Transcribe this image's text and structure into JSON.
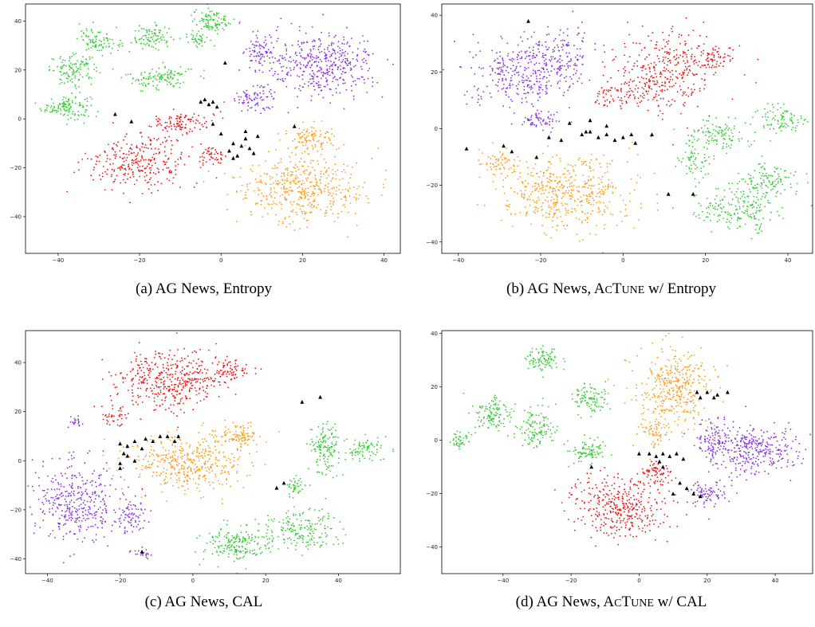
{
  "colors": {
    "purple": "#8a2be2",
    "red": "#ee1111",
    "orange": "#ff9a12",
    "green": "#33cc33",
    "black": "#000000"
  },
  "panels": [
    {
      "caption_prefix": "(a)  AG News, ",
      "caption_method": "Entropy",
      "caption_sc": false
    },
    {
      "caption_prefix": "(b)  AG News, ",
      "caption_method": "Entropy",
      "caption_sc": true
    },
    {
      "caption_prefix": "(c)  AG News, ",
      "caption_method": "CAL",
      "caption_sc": false
    },
    {
      "caption_prefix": "(d)  AG News, ",
      "caption_method": "CAL",
      "caption_sc": true
    }
  ],
  "sc_text": {
    "A": "A",
    "CT": "CT",
    "UNE": "UNE",
    "wslash": " w/ "
  },
  "chart_data": [
    {
      "type": "scatter",
      "title": "",
      "xlabel": "",
      "ylabel": "",
      "xlim": [
        -48,
        44
      ],
      "ylim": [
        -55,
        47
      ],
      "xticks": [
        "−40",
        "−20",
        "0",
        "20",
        "40"
      ],
      "xtick_values": [
        -40,
        -20,
        0,
        20,
        40
      ],
      "yticks": [
        "40",
        "20",
        "0",
        "−20",
        "−40"
      ],
      "ytick_values": [
        40,
        20,
        0,
        -20,
        -40
      ],
      "grid": false,
      "clusters": [
        {
          "color": "green",
          "cx": -38,
          "cy": 5,
          "rx": 6,
          "ry": 5,
          "n": 120
        },
        {
          "color": "green",
          "cx": -36,
          "cy": 20,
          "rx": 6,
          "ry": 6,
          "n": 120
        },
        {
          "color": "green",
          "cx": -30,
          "cy": 32,
          "rx": 5,
          "ry": 5,
          "n": 90
        },
        {
          "color": "green",
          "cx": -17,
          "cy": 33,
          "rx": 5,
          "ry": 5,
          "n": 90
        },
        {
          "color": "green",
          "cx": -15,
          "cy": 17,
          "rx": 8,
          "ry": 5,
          "n": 120
        },
        {
          "color": "green",
          "cx": -6,
          "cy": 33,
          "rx": 3,
          "ry": 3,
          "n": 40
        },
        {
          "color": "green",
          "cx": -2,
          "cy": 40,
          "rx": 5,
          "ry": 5,
          "n": 100
        },
        {
          "color": "purple",
          "cx": 25,
          "cy": 22,
          "rx": 13,
          "ry": 13,
          "n": 420
        },
        {
          "color": "purple",
          "cx": 10,
          "cy": 28,
          "rx": 4,
          "ry": 8,
          "n": 80
        },
        {
          "color": "purple",
          "cx": 8,
          "cy": 8,
          "rx": 6,
          "ry": 5,
          "n": 80
        },
        {
          "color": "red",
          "cx": -20,
          "cy": -18,
          "rx": 12,
          "ry": 10,
          "n": 280
        },
        {
          "color": "red",
          "cx": -10,
          "cy": -2,
          "rx": 8,
          "ry": 5,
          "n": 110
        },
        {
          "color": "red",
          "cx": -2,
          "cy": -15,
          "rx": 3,
          "ry": 6,
          "n": 50
        },
        {
          "color": "orange",
          "cx": 20,
          "cy": -28,
          "rx": 16,
          "ry": 14,
          "n": 460
        },
        {
          "color": "orange",
          "cx": 22,
          "cy": -8,
          "rx": 7,
          "ry": 6,
          "n": 100
        }
      ],
      "queries": [
        [
          -5,
          7
        ],
        [
          -3,
          6
        ],
        [
          -1,
          5
        ],
        [
          -2,
          7
        ],
        [
          -4,
          8
        ],
        [
          -26,
          2
        ],
        [
          -22,
          -1
        ],
        [
          2,
          -13
        ],
        [
          3,
          -10
        ],
        [
          5,
          -11
        ],
        [
          6,
          -8
        ],
        [
          4,
          -15
        ],
        [
          8,
          -14
        ],
        [
          9,
          -7
        ],
        [
          7,
          -12
        ],
        [
          3,
          -16
        ],
        [
          6,
          -5
        ],
        [
          18,
          -3
        ],
        [
          -2,
          -2
        ],
        [
          0,
          -6
        ],
        [
          1,
          23
        ]
      ]
    },
    {
      "type": "scatter",
      "title": "",
      "xlabel": "",
      "ylabel": "",
      "xlim": [
        -44,
        46
      ],
      "ylim": [
        -44,
        44
      ],
      "xticks": [
        "−40",
        "−20",
        "0",
        "20",
        "40"
      ],
      "xtick_values": [
        -40,
        -20,
        0,
        20,
        40
      ],
      "yticks": [
        "40",
        "20",
        "0",
        "−20",
        "−40"
      ],
      "ytick_values": [
        40,
        20,
        0,
        -20,
        -40
      ],
      "grid": false,
      "clusters": [
        {
          "color": "purple",
          "cx": -25,
          "cy": 20,
          "rx": 12,
          "ry": 12,
          "n": 320
        },
        {
          "color": "purple",
          "cx": -14,
          "cy": 25,
          "rx": 6,
          "ry": 10,
          "n": 120
        },
        {
          "color": "purple",
          "cx": -20,
          "cy": 3,
          "rx": 5,
          "ry": 4,
          "n": 60
        },
        {
          "color": "red",
          "cx": 10,
          "cy": 20,
          "rx": 12,
          "ry": 14,
          "n": 350
        },
        {
          "color": "red",
          "cx": -2,
          "cy": 12,
          "rx": 6,
          "ry": 4,
          "n": 60
        },
        {
          "color": "red",
          "cx": 22,
          "cy": 25,
          "rx": 6,
          "ry": 5,
          "n": 70
        },
        {
          "color": "orange",
          "cx": -14,
          "cy": -23,
          "rx": 16,
          "ry": 14,
          "n": 480
        },
        {
          "color": "orange",
          "cx": -30,
          "cy": -12,
          "rx": 5,
          "ry": 5,
          "n": 60
        },
        {
          "color": "green",
          "cx": 28,
          "cy": -28,
          "rx": 12,
          "ry": 8,
          "n": 200
        },
        {
          "color": "green",
          "cx": 35,
          "cy": -18,
          "rx": 7,
          "ry": 6,
          "n": 110
        },
        {
          "color": "green",
          "cx": 38,
          "cy": 3,
          "rx": 5,
          "ry": 5,
          "n": 90
        },
        {
          "color": "green",
          "cx": 23,
          "cy": -2,
          "rx": 8,
          "ry": 5,
          "n": 110
        },
        {
          "color": "green",
          "cx": 18,
          "cy": -12,
          "rx": 4,
          "ry": 6,
          "n": 60
        }
      ],
      "queries": [
        [
          -38,
          -7
        ],
        [
          -29,
          -6
        ],
        [
          -21,
          -10
        ],
        [
          -18,
          -3
        ],
        [
          -15,
          -4
        ],
        [
          -10,
          -2
        ],
        [
          -8,
          -1
        ],
        [
          -6,
          -3
        ],
        [
          -4,
          -2
        ],
        [
          -2,
          -4
        ],
        [
          0,
          -3
        ],
        [
          2,
          -2
        ],
        [
          -13,
          2
        ],
        [
          -8,
          3
        ],
        [
          -9,
          -1
        ],
        [
          -23,
          38
        ],
        [
          3,
          -5
        ],
        [
          7,
          -2
        ],
        [
          -27,
          -8
        ],
        [
          17,
          -23
        ],
        [
          11,
          -23
        ],
        [
          -4,
          1
        ]
      ]
    },
    {
      "type": "scatter",
      "title": "",
      "xlabel": "",
      "ylabel": "",
      "xlim": [
        -46,
        57
      ],
      "ylim": [
        -46,
        53
      ],
      "xticks": [
        "−40",
        "−20",
        "0",
        "20",
        "40"
      ],
      "xtick_values": [
        -40,
        -20,
        0,
        20,
        40
      ],
      "yticks": [
        "40",
        "20",
        "0",
        "−20",
        "−40"
      ],
      "ytick_values": [
        40,
        20,
        0,
        -20,
        -40
      ],
      "grid": false,
      "clusters": [
        {
          "color": "red",
          "cx": -6,
          "cy": 33,
          "rx": 14,
          "ry": 12,
          "n": 400
        },
        {
          "color": "red",
          "cx": 10,
          "cy": 37,
          "rx": 6,
          "ry": 5,
          "n": 80
        },
        {
          "color": "red",
          "cx": -22,
          "cy": 18,
          "rx": 4,
          "ry": 4,
          "n": 40
        },
        {
          "color": "orange",
          "cx": -2,
          "cy": -1,
          "rx": 16,
          "ry": 11,
          "n": 420
        },
        {
          "color": "orange",
          "cx": 12,
          "cy": 10,
          "rx": 7,
          "ry": 5,
          "n": 100
        },
        {
          "color": "purple",
          "cx": -32,
          "cy": -17,
          "rx": 11,
          "ry": 17,
          "n": 360
        },
        {
          "color": "purple",
          "cx": -17,
          "cy": -23,
          "rx": 5,
          "ry": 8,
          "n": 80
        },
        {
          "color": "purple",
          "cx": -14,
          "cy": -38,
          "rx": 3,
          "ry": 2,
          "n": 20
        },
        {
          "color": "purple",
          "cx": -32,
          "cy": 16,
          "rx": 2,
          "ry": 3,
          "n": 20
        },
        {
          "color": "green",
          "cx": 12,
          "cy": -34,
          "rx": 10,
          "ry": 7,
          "n": 200
        },
        {
          "color": "green",
          "cx": 30,
          "cy": -28,
          "rx": 10,
          "ry": 8,
          "n": 180
        },
        {
          "color": "green",
          "cx": 36,
          "cy": 5,
          "rx": 4,
          "ry": 12,
          "n": 140
        },
        {
          "color": "green",
          "cx": 47,
          "cy": 5,
          "rx": 6,
          "ry": 5,
          "n": 80
        },
        {
          "color": "green",
          "cx": 28,
          "cy": -10,
          "rx": 4,
          "ry": 4,
          "n": 40
        }
      ],
      "queries": [
        [
          -20,
          7
        ],
        [
          -19,
          3
        ],
        [
          -20,
          -1
        ],
        [
          -18,
          6
        ],
        [
          -16,
          8
        ],
        [
          -13,
          9
        ],
        [
          -11,
          8
        ],
        [
          -9,
          10
        ],
        [
          -7,
          10
        ],
        [
          -4,
          10
        ],
        [
          -20,
          -3
        ],
        [
          -16,
          0
        ],
        [
          -18,
          2
        ],
        [
          -14,
          -37
        ],
        [
          23,
          -11
        ],
        [
          25,
          -9
        ],
        [
          35,
          26
        ],
        [
          30,
          24
        ],
        [
          -5,
          8
        ],
        [
          -14,
          5
        ]
      ]
    },
    {
      "type": "scatter",
      "title": "",
      "xlabel": "",
      "ylabel": "",
      "xlim": [
        -58,
        51
      ],
      "ylim": [
        -50,
        41
      ],
      "xticks": [
        "−40",
        "−20",
        "0",
        "20",
        "40"
      ],
      "xtick_values": [
        -40,
        -20,
        0,
        20,
        40
      ],
      "yticks": [
        "40",
        "20",
        "0",
        "−20",
        "−40"
      ],
      "ytick_values": [
        40,
        20,
        0,
        -20,
        -40
      ],
      "grid": false,
      "clusters": [
        {
          "color": "green",
          "cx": -28,
          "cy": 30,
          "rx": 5,
          "ry": 5,
          "n": 90
        },
        {
          "color": "green",
          "cx": -43,
          "cy": 10,
          "rx": 6,
          "ry": 7,
          "n": 120
        },
        {
          "color": "green",
          "cx": -30,
          "cy": 5,
          "rx": 6,
          "ry": 8,
          "n": 120
        },
        {
          "color": "green",
          "cx": -15,
          "cy": 15,
          "rx": 5,
          "ry": 6,
          "n": 100
        },
        {
          "color": "green",
          "cx": -15,
          "cy": -4,
          "rx": 6,
          "ry": 5,
          "n": 90
        },
        {
          "color": "green",
          "cx": -53,
          "cy": 0,
          "rx": 3,
          "ry": 3,
          "n": 40
        },
        {
          "color": "orange",
          "cx": 10,
          "cy": 20,
          "rx": 12,
          "ry": 14,
          "n": 380
        },
        {
          "color": "orange",
          "cx": 5,
          "cy": 2,
          "rx": 4,
          "ry": 6,
          "n": 60
        },
        {
          "color": "purple",
          "cx": 33,
          "cy": -4,
          "rx": 14,
          "ry": 9,
          "n": 330
        },
        {
          "color": "purple",
          "cx": 22,
          "cy": 0,
          "rx": 5,
          "ry": 8,
          "n": 90
        },
        {
          "color": "purple",
          "cx": 20,
          "cy": -20,
          "rx": 6,
          "ry": 5,
          "n": 80
        },
        {
          "color": "red",
          "cx": -5,
          "cy": -25,
          "rx": 14,
          "ry": 12,
          "n": 380
        },
        {
          "color": "red",
          "cx": 5,
          "cy": -12,
          "rx": 5,
          "ry": 4,
          "n": 60
        }
      ],
      "queries": [
        [
          17,
          18
        ],
        [
          20,
          18
        ],
        [
          23,
          17
        ],
        [
          26,
          18
        ],
        [
          22,
          16
        ],
        [
          18,
          16
        ],
        [
          0,
          -5
        ],
        [
          3,
          -5
        ],
        [
          5,
          -6
        ],
        [
          7,
          -5
        ],
        [
          9,
          -6
        ],
        [
          11,
          -5
        ],
        [
          13,
          -7
        ],
        [
          6,
          -8
        ],
        [
          14,
          -18
        ],
        [
          12,
          -16
        ],
        [
          10,
          -20
        ],
        [
          16,
          -20
        ],
        [
          18,
          -21
        ],
        [
          -14,
          -10
        ],
        [
          7,
          -10
        ]
      ]
    }
  ]
}
